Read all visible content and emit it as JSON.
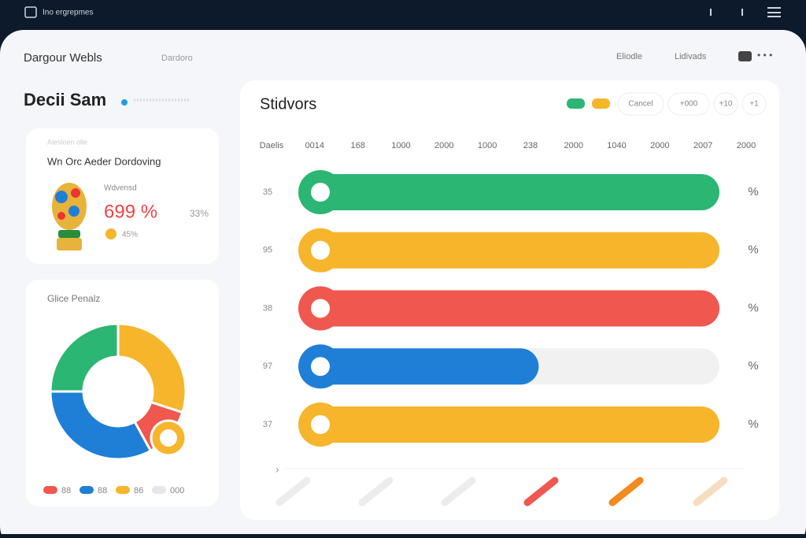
{
  "topbar": {
    "title": "Ino ergrepmes"
  },
  "header": {
    "title": "Dargour Webls",
    "tab": "Dardoro",
    "links": [
      "Eliodle",
      "Lidivads"
    ]
  },
  "section_title": "Decii Sam",
  "stat_card": {
    "kicker": "Alesloen olle",
    "title": "Wn Orc Aeder Dordoving",
    "label": "Wdvensd",
    "value_text": "699 %",
    "side": "33%",
    "legend": "45%"
  },
  "donut_card": {
    "title": "Glice Penalz",
    "segments": [
      {
        "color": "#f7b52c",
        "value": 30
      },
      {
        "color": "#f0574f",
        "value": 12
      },
      {
        "color": "#1f7fd6",
        "value": 33
      },
      {
        "color": "#2bb673",
        "value": 25
      }
    ],
    "legend": [
      {
        "color": "#f0574f",
        "label": "88"
      },
      {
        "color": "#1f7fd6",
        "label": "88"
      },
      {
        "color": "#f7b52c",
        "label": "86"
      },
      {
        "color": "#e4e6ea",
        "label": "000"
      }
    ]
  },
  "bars": {
    "title": "Stidvors",
    "buttons": [
      "Cancel",
      "+000",
      "+10",
      "+1"
    ],
    "axis_labels": [
      "Daelis",
      "0014",
      "168",
      "1000",
      "2000",
      "1000",
      "238",
      "2000",
      "1040",
      "2000",
      "2007",
      "2000"
    ],
    "unit": "%",
    "xlim": [
      0,
      100
    ],
    "rows": [
      {
        "label": "35",
        "color": "#2bb673",
        "value": 100
      },
      {
        "label": "95",
        "color": "#f7b52c",
        "value": 100
      },
      {
        "label": "38",
        "color": "#f0574f",
        "value": 100
      },
      {
        "label": "97",
        "color": "#1f7fd6",
        "value": 57
      },
      {
        "label": "37",
        "color": "#f7b52c",
        "value": 100
      }
    ]
  }
}
